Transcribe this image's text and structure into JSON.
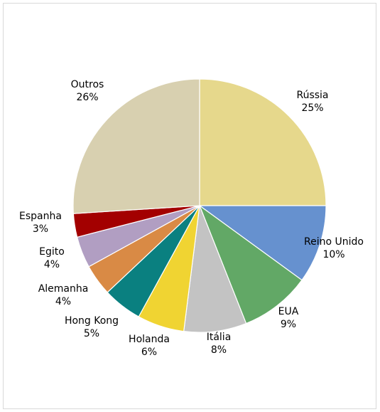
{
  "chart_data": {
    "type": "pie",
    "title": "",
    "legend": "none",
    "slices": [
      {
        "label": "Rússia",
        "value": 25,
        "pct_label": "25%",
        "color": "#E6D88C"
      },
      {
        "label": "Reino Unido",
        "value": 10,
        "pct_label": "10%",
        "color": "#6691CF"
      },
      {
        "label": "EUA",
        "value": 9,
        "pct_label": "9%",
        "color": "#62A866"
      },
      {
        "label": "Itália",
        "value": 8,
        "pct_label": "8%",
        "color": "#C3C3C3"
      },
      {
        "label": "Holanda",
        "value": 6,
        "pct_label": "6%",
        "color": "#F0D432"
      },
      {
        "label": "Hong Kong",
        "value": 5,
        "pct_label": "5%",
        "color": "#0A8080"
      },
      {
        "label": "Alemanha",
        "value": 4,
        "pct_label": "4%",
        "color": "#D98A45"
      },
      {
        "label": "Egito",
        "value": 4,
        "pct_label": "4%",
        "color": "#B19EC2"
      },
      {
        "label": "Espanha",
        "value": 3,
        "pct_label": "3%",
        "color": "#A30000"
      },
      {
        "label": "Outros",
        "value": 26,
        "pct_label": "26%",
        "color": "#D8D0B0"
      }
    ]
  }
}
